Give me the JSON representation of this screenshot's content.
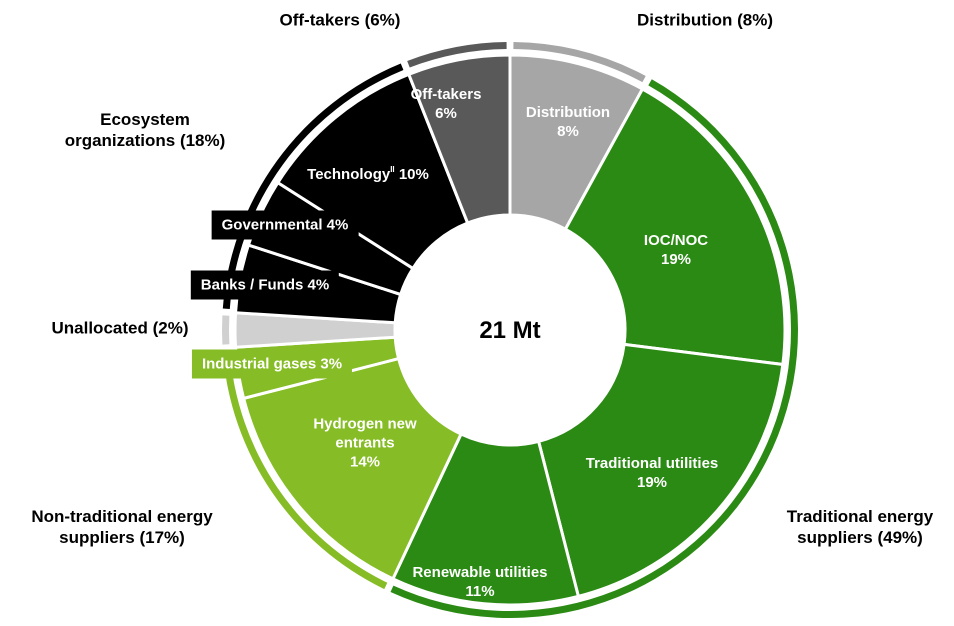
{
  "chart_data": {
    "type": "donut",
    "center_label": "21 Mt",
    "categories": [
      "Distribution",
      "IOC/NOC",
      "Traditional utilities",
      "Renewable utilities",
      "Hydrogen new entrants",
      "Industrial gases",
      null,
      "Banks / Funds",
      "Governmental",
      "Technology",
      "Off-takers"
    ],
    "category_notes": [
      null,
      null,
      null,
      null,
      null,
      null,
      null,
      null,
      null,
      "II",
      null
    ],
    "values": [
      8,
      19,
      19,
      11,
      14,
      3,
      2,
      4,
      4,
      10,
      6
    ],
    "value_labels": [
      "8%",
      "19%",
      "19%",
      "11%",
      "14%",
      "3%",
      null,
      "4%",
      "4%",
      "10%",
      "6%"
    ],
    "colors": [
      "#a6a6a6",
      "#2b8a14",
      "#2b8a14",
      "#2b8a14",
      "#86bc25",
      "#86bc25",
      "#d0d0d0",
      "#000000",
      "#000000",
      "#000000",
      "#595959"
    ],
    "groups": {
      "names": [
        "Distribution",
        "Traditional energy suppliers",
        "Non-traditional energy suppliers",
        "Unallocated",
        "Ecosystem organizations",
        "Off-takers"
      ],
      "values": [
        8,
        49,
        17,
        2,
        18,
        6
      ],
      "value_labels": [
        "(8%)",
        "(49%)",
        "(17%)",
        "(2%)",
        "(18%)",
        "(6%)"
      ],
      "colors": [
        "#a6a6a6",
        "#2b8a14",
        "#86bc25",
        "#d0d0d0",
        "#000000",
        "#595959"
      ]
    }
  }
}
